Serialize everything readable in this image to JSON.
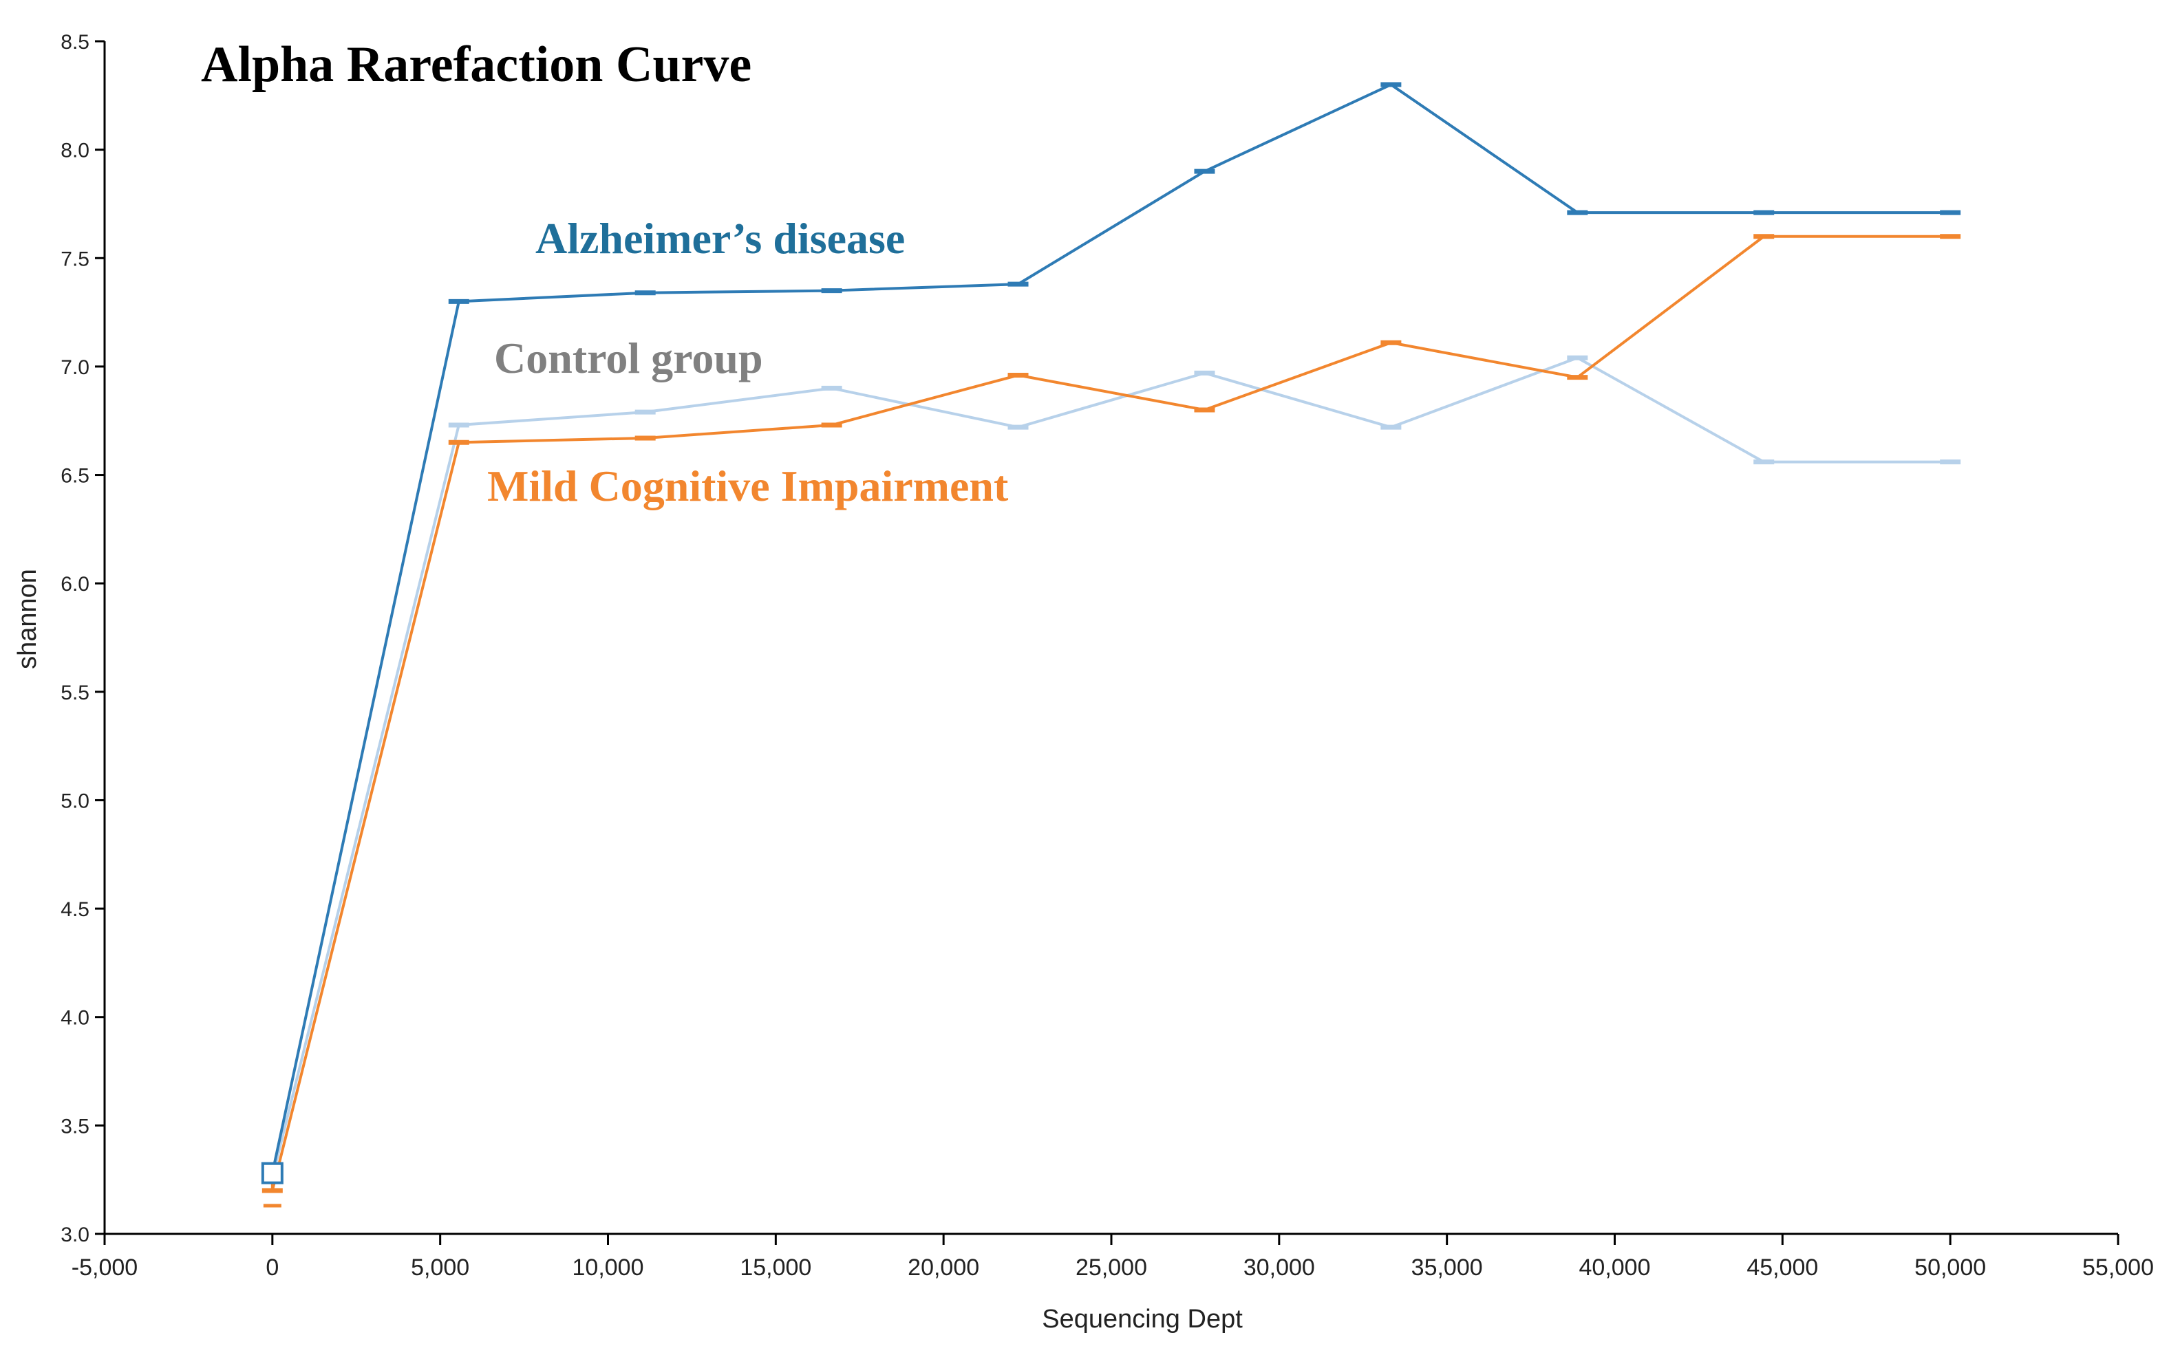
{
  "chart_data": {
    "type": "line",
    "title": "Alpha Rarefaction Curve",
    "xlabel": "Sequencing Dept",
    "ylabel": "shannon",
    "xlim": [
      -5000,
      55000
    ],
    "ylim": [
      3.0,
      8.5
    ],
    "grid": false,
    "xticks": [
      "-5,000",
      "0",
      "5,000",
      "10,000",
      "15,000",
      "20,000",
      "25,000",
      "30,000",
      "35,000",
      "40,000",
      "45,000",
      "50,000",
      "55,000"
    ],
    "xtick_values": [
      -5000,
      0,
      5000,
      10000,
      15000,
      20000,
      25000,
      30000,
      35000,
      40000,
      45000,
      50000,
      55000
    ],
    "yticks": [
      "3.0",
      "3.5",
      "4.0",
      "4.5",
      "5.0",
      "5.5",
      "6.0",
      "6.5",
      "7.0",
      "7.5",
      "8.0",
      "8.5"
    ],
    "ytick_values": [
      3.0,
      3.5,
      4.0,
      4.5,
      5.0,
      5.5,
      6.0,
      6.5,
      7.0,
      7.5,
      8.0,
      8.5
    ],
    "x": [
      0,
      5556,
      11111,
      16667,
      22222,
      27778,
      33333,
      38889,
      44444,
      50000
    ],
    "series": [
      {
        "name": "Alzheimer’s disease",
        "color": "#2e7bb5",
        "label_color": "#1f6f9a",
        "values": [
          3.28,
          7.3,
          7.34,
          7.35,
          7.38,
          7.9,
          8.3,
          7.71,
          7.71,
          7.71
        ]
      },
      {
        "name": "Control group",
        "color": "#b7d1ea",
        "label_color": "#808080",
        "values": [
          3.26,
          6.73,
          6.79,
          6.9,
          6.72,
          6.97,
          6.72,
          7.04,
          6.56,
          6.56
        ]
      },
      {
        "name": "Mild Cognitive Impairment",
        "color": "#f2862e",
        "label_color": "#f2862e",
        "values": [
          3.2,
          6.65,
          6.67,
          6.73,
          6.96,
          6.8,
          7.11,
          6.95,
          7.6,
          7.6
        ]
      }
    ]
  }
}
